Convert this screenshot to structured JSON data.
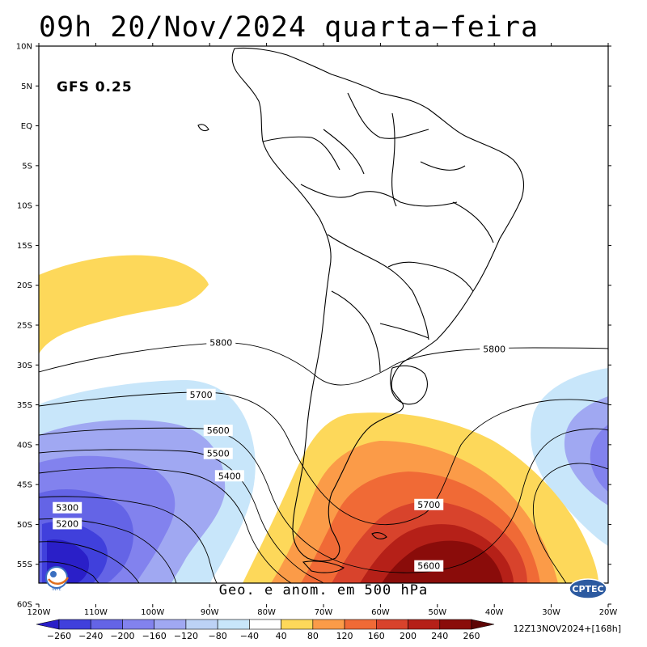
{
  "header": {
    "title": "09h 20/Nov/2024 quarta−feira"
  },
  "model_label": "GFS 0.25",
  "footer": {
    "caption": "Geo. e anom. em 500 hPa",
    "run": "12Z13NOV2024+[168h]"
  },
  "logos": {
    "left": "INPE",
    "right": "CPTEC"
  },
  "axes": {
    "lat_labels": [
      "10N",
      "5N",
      "EQ",
      "5S",
      "10S",
      "15S",
      "20S",
      "25S",
      "30S",
      "35S",
      "40S",
      "45S",
      "50S",
      "55S",
      "60S"
    ],
    "lon_labels": [
      "120W",
      "110W",
      "100W",
      "90W",
      "80W",
      "70W",
      "60W",
      "50W",
      "40W",
      "30W",
      "20W"
    ]
  },
  "contours": [
    {
      "value": "5800",
      "lon": -88,
      "lat": -27.2
    },
    {
      "value": "5800",
      "lon": -40,
      "lat": -28.0
    },
    {
      "value": "5700",
      "lon": -91.5,
      "lat": -33.7
    },
    {
      "value": "5700",
      "lon": -51.5,
      "lat": -47.5
    },
    {
      "value": "5600",
      "lon": -88.5,
      "lat": -38.2
    },
    {
      "value": "5600",
      "lon": -51.5,
      "lat": -55.2
    },
    {
      "value": "5500",
      "lon": -88.5,
      "lat": -41.1
    },
    {
      "value": "5400",
      "lon": -86.5,
      "lat": -43.9
    },
    {
      "value": "5300",
      "lon": -115,
      "lat": -47.9
    },
    {
      "value": "5200",
      "lon": -115,
      "lat": -49.9
    }
  ],
  "colorbar": {
    "labels": [
      "−260",
      "−240",
      "−200",
      "−160",
      "−120",
      "−80",
      "−40",
      "40",
      "80",
      "120",
      "160",
      "200",
      "240",
      "260"
    ],
    "colors": [
      "#2a1fc8",
      "#4040dc",
      "#6464e6",
      "#8282ee",
      "#a0a8f2",
      "#bcd2f5",
      "#c8e6fa",
      "#ffffff",
      "#fdd85a",
      "#fb9b48",
      "#f06a36",
      "#d8432c",
      "#b52018",
      "#8a0c0a",
      "#5e0505"
    ]
  },
  "colors": {
    "anomaly_pos_1": "#fdd85a",
    "anomaly_pos_2": "#fb9b48",
    "anomaly_pos_3": "#f06a36",
    "anomaly_pos_4": "#d8432c",
    "anomaly_pos_5": "#b52018",
    "anomaly_pos_6": "#8a0c0a",
    "anomaly_pos_7": "#5e0505",
    "anomaly_neg_1": "#c8e6fa",
    "anomaly_neg_2": "#a0a8f2",
    "anomaly_neg_3": "#8282ee",
    "anomaly_neg_4": "#6464e6",
    "anomaly_neg_5": "#4040dc",
    "anomaly_neg_6": "#2a1fc8"
  }
}
